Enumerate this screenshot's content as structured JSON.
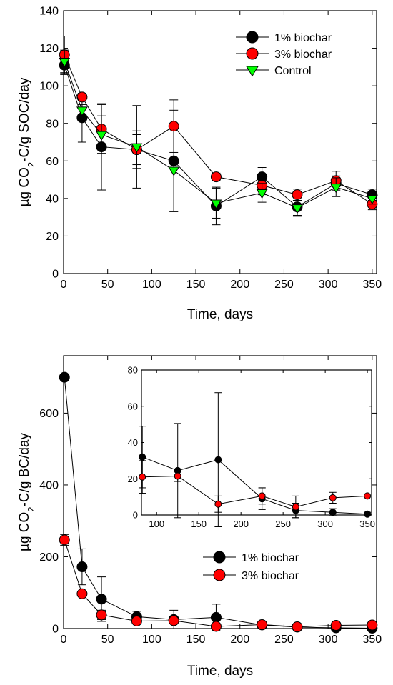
{
  "chart_data": [
    {
      "type": "line",
      "ylabel_main": "µg CO",
      "ylabel_sub": "2",
      "ylabel_rest": "-C/g SOC/day",
      "xlabel": "Time, days",
      "xlim": [
        0,
        355
      ],
      "ylim": [
        0,
        140
      ],
      "xticks": [
        0,
        50,
        100,
        150,
        200,
        250,
        300,
        350
      ],
      "yticks": [
        0,
        20,
        40,
        60,
        80,
        100,
        120,
        140
      ],
      "legend_position": "top-right",
      "x": [
        1,
        21,
        43,
        83,
        125,
        173,
        225,
        265,
        309,
        350
      ],
      "series": [
        {
          "name": "1% biochar",
          "marker": "circle",
          "color": "#000000",
          "values": [
            111,
            83,
            67.5,
            66,
            60,
            36,
            51.5,
            35.5,
            48,
            42
          ],
          "errors": [
            5,
            13,
            23,
            8,
            27,
            10,
            5,
            5,
            4,
            3
          ]
        },
        {
          "name": "3% biochar",
          "marker": "circle",
          "color": "#ff0000",
          "values": [
            116.5,
            94,
            77,
            66,
            78.5,
            51.5,
            47,
            42,
            49.5,
            37
          ],
          "errors": [
            10,
            2,
            13,
            10,
            14,
            2,
            5,
            3,
            5,
            3
          ]
        },
        {
          "name": "Control",
          "marker": "triangle",
          "color": "#00ff00",
          "values": [
            113,
            87,
            74,
            67.5,
            55,
            37.5,
            43,
            35,
            46,
            40
          ],
          "errors": [
            6,
            3,
            10,
            22,
            22,
            8,
            5,
            4,
            5,
            3
          ]
        }
      ]
    },
    {
      "type": "line",
      "ylabel_main": "µg CO",
      "ylabel_sub": "2",
      "ylabel_rest": "-C/g BC/day",
      "xlabel": "Time, days",
      "xlim": [
        0,
        355
      ],
      "ylim": [
        0,
        760
      ],
      "xticks": [
        0,
        50,
        100,
        150,
        200,
        250,
        300,
        350
      ],
      "yticks": [
        0,
        200,
        400,
        600
      ],
      "legend_position": "lower-right",
      "x": [
        1,
        21,
        43,
        83,
        125,
        173,
        225,
        265,
        309,
        350
      ],
      "series": [
        {
          "name": "1% biochar",
          "marker": "circle",
          "color": "#000000",
          "values": [
            700,
            172,
            82,
            33,
            25,
            31,
            10,
            4,
            2,
            1
          ],
          "errors": [
            0,
            50,
            62,
            15,
            26,
            37,
            5,
            3,
            2,
            1
          ]
        },
        {
          "name": "3% biochar",
          "marker": "circle",
          "color": "#ff0000",
          "values": [
            247,
            97,
            38,
            21,
            22,
            6,
            11,
            5,
            9,
            10
          ],
          "errors": [
            15,
            0,
            13,
            5,
            4,
            4,
            4,
            4,
            3,
            0
          ]
        }
      ],
      "inset": {
        "xlim": [
          82,
          355
        ],
        "ylim": [
          0,
          80
        ],
        "xticks": [
          100,
          150,
          200,
          250,
          300,
          350
        ],
        "yticks": [
          0,
          20,
          40,
          60,
          80
        ],
        "x": [
          83,
          125,
          173,
          225,
          265,
          309,
          350
        ],
        "series": [
          {
            "name": "1% biochar",
            "color": "#000000",
            "values": [
              32,
              24.5,
              30.5,
              9,
              2.5,
              1.5,
              0.5
            ],
            "errors": [
              17,
              26,
              37,
              6,
              4,
              2,
              1
            ]
          },
          {
            "name": "3% biochar",
            "color": "#ff0000",
            "values": [
              21,
              21.5,
              6,
              10.5,
              4.5,
              9.5,
              10.5
            ],
            "errors": [
              9,
              3,
              4.5,
              4.5,
              6,
              3,
              0
            ]
          }
        ]
      }
    }
  ]
}
